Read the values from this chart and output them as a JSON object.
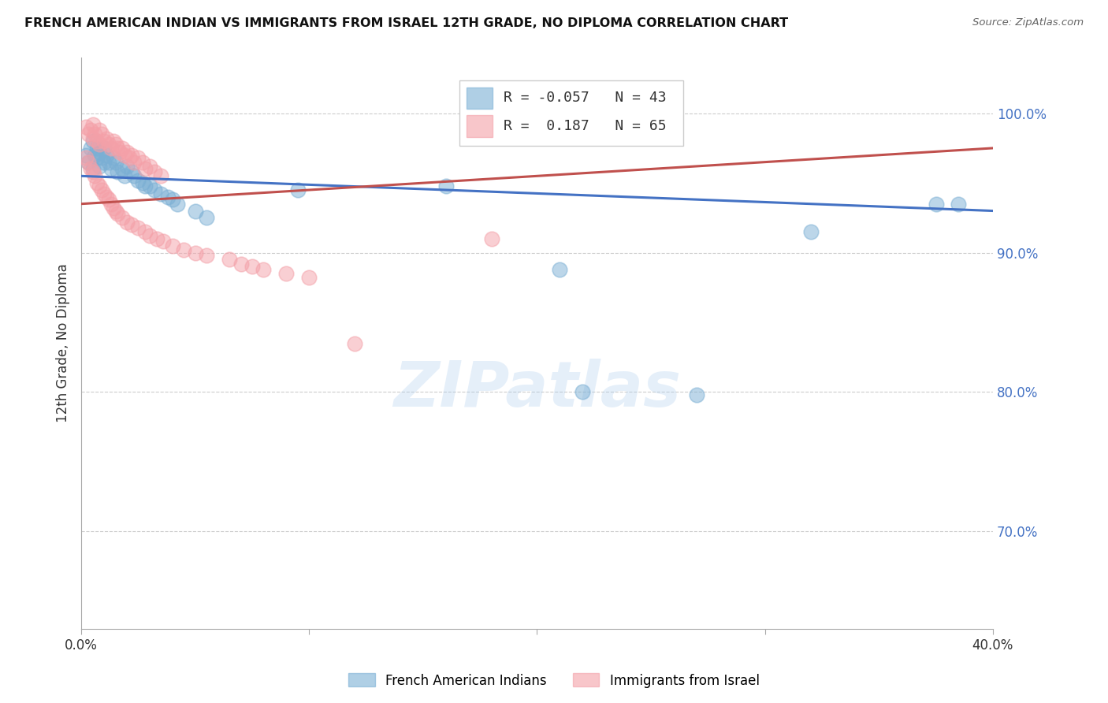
{
  "title": "FRENCH AMERICAN INDIAN VS IMMIGRANTS FROM ISRAEL 12TH GRADE, NO DIPLOMA CORRELATION CHART",
  "source": "Source: ZipAtlas.com",
  "ylabel": "12th Grade, No Diploma",
  "ytick_labels": [
    "70.0%",
    "80.0%",
    "90.0%",
    "100.0%"
  ],
  "ytick_values": [
    0.7,
    0.8,
    0.9,
    1.0
  ],
  "xlim": [
    0.0,
    0.4
  ],
  "ylim": [
    0.63,
    1.04
  ],
  "legend_blue_r": "-0.057",
  "legend_blue_n": "43",
  "legend_pink_r": "0.187",
  "legend_pink_n": "65",
  "legend_blue_label": "French American Indians",
  "legend_pink_label": "Immigrants from Israel",
  "blue_color": "#7BAFD4",
  "pink_color": "#F4A0A8",
  "blue_line_color": "#4472C4",
  "pink_line_color": "#C0504D",
  "watermark": "ZIPatlas",
  "blue_scatter_x": [
    0.002,
    0.003,
    0.004,
    0.005,
    0.005,
    0.006,
    0.007,
    0.007,
    0.008,
    0.008,
    0.009,
    0.01,
    0.01,
    0.011,
    0.012,
    0.013,
    0.014,
    0.015,
    0.016,
    0.018,
    0.019,
    0.02,
    0.022,
    0.023,
    0.025,
    0.027,
    0.028,
    0.03,
    0.032,
    0.035,
    0.038,
    0.04,
    0.042,
    0.05,
    0.055,
    0.16,
    0.21,
    0.27,
    0.32,
    0.375,
    0.385,
    0.22,
    0.095
  ],
  "blue_scatter_y": [
    0.97,
    0.965,
    0.975,
    0.96,
    0.98,
    0.97,
    0.968,
    0.975,
    0.962,
    0.972,
    0.968,
    0.965,
    0.975,
    0.97,
    0.965,
    0.96,
    0.968,
    0.965,
    0.958,
    0.96,
    0.955,
    0.962,
    0.958,
    0.955,
    0.952,
    0.95,
    0.948,
    0.948,
    0.945,
    0.942,
    0.94,
    0.938,
    0.935,
    0.93,
    0.925,
    0.948,
    0.888,
    0.798,
    0.915,
    0.935,
    0.935,
    0.8,
    0.945
  ],
  "pink_scatter_x": [
    0.002,
    0.003,
    0.004,
    0.005,
    0.005,
    0.006,
    0.007,
    0.008,
    0.008,
    0.009,
    0.01,
    0.011,
    0.012,
    0.013,
    0.014,
    0.015,
    0.016,
    0.017,
    0.018,
    0.019,
    0.02,
    0.021,
    0.022,
    0.023,
    0.025,
    0.027,
    0.028,
    0.03,
    0.032,
    0.035,
    0.002,
    0.003,
    0.004,
    0.005,
    0.006,
    0.007,
    0.008,
    0.009,
    0.01,
    0.011,
    0.012,
    0.013,
    0.014,
    0.015,
    0.016,
    0.018,
    0.02,
    0.022,
    0.025,
    0.028,
    0.03,
    0.033,
    0.036,
    0.04,
    0.045,
    0.05,
    0.055,
    0.065,
    0.07,
    0.075,
    0.08,
    0.09,
    0.1,
    0.12,
    0.18
  ],
  "pink_scatter_y": [
    0.99,
    0.985,
    0.988,
    0.982,
    0.992,
    0.985,
    0.98,
    0.988,
    0.978,
    0.985,
    0.98,
    0.982,
    0.978,
    0.975,
    0.98,
    0.978,
    0.975,
    0.972,
    0.975,
    0.97,
    0.972,
    0.968,
    0.97,
    0.965,
    0.968,
    0.965,
    0.96,
    0.962,
    0.958,
    0.955,
    0.968,
    0.965,
    0.96,
    0.958,
    0.955,
    0.95,
    0.948,
    0.945,
    0.942,
    0.94,
    0.938,
    0.935,
    0.932,
    0.93,
    0.928,
    0.925,
    0.922,
    0.92,
    0.918,
    0.915,
    0.912,
    0.91,
    0.908,
    0.905,
    0.902,
    0.9,
    0.898,
    0.895,
    0.892,
    0.89,
    0.888,
    0.885,
    0.882,
    0.835,
    0.91
  ],
  "blue_line_x0": 0.0,
  "blue_line_x1": 0.4,
  "blue_line_y0": 0.955,
  "blue_line_y1": 0.93,
  "pink_line_x0": 0.0,
  "pink_line_x1": 0.4,
  "pink_line_y0": 0.935,
  "pink_line_y1": 0.975
}
